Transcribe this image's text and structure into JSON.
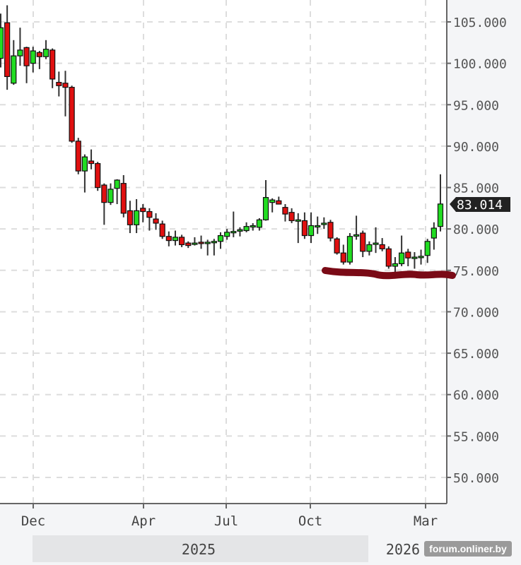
{
  "chart_data": {
    "type": "candlestick",
    "title": "",
    "xlabel": "",
    "ylabel": "",
    "ylim": [
      47,
      107
    ],
    "y_ticks": [
      "105.000",
      "100.000",
      "95.000",
      "90.000",
      "85.000",
      "80.000",
      "75.000",
      "70.000",
      "65.000",
      "60.000",
      "55.000",
      "50.000"
    ],
    "y_tick_values": [
      105,
      100,
      95,
      90,
      85,
      80,
      75,
      70,
      65,
      60,
      55,
      50
    ],
    "x_ticks": [
      "Dec",
      "Apr",
      "Jul",
      "Oct",
      "Mar"
    ],
    "years": [
      "2025",
      "2026"
    ],
    "grid": true,
    "axis_position": "right",
    "last_price_label": "83.014",
    "colors": {
      "up": "#22dd22",
      "down": "#e01010",
      "outline": "#111111",
      "annotation": "#7a0a16",
      "grid": "#dddddd"
    },
    "ohlc_columns": [
      "open",
      "high",
      "low",
      "close"
    ],
    "candles": [
      [
        100.6,
        106,
        99.5,
        104.3
      ],
      [
        104.9,
        107,
        96.8,
        98.4
      ],
      [
        97.6,
        102.8,
        97.4,
        100.9
      ],
      [
        100.9,
        104.3,
        99.7,
        101.6
      ],
      [
        101.9,
        102,
        97.6,
        99.7
      ],
      [
        100.0,
        102,
        98.9,
        101.5
      ],
      [
        101.3,
        101.5,
        99.3,
        100.8
      ],
      [
        100.8,
        102.8,
        100.5,
        101.7
      ],
      [
        101.6,
        101.8,
        97,
        98.1
      ],
      [
        97.7,
        99,
        96,
        97.3
      ],
      [
        97.6,
        99.1,
        93.6,
        97.1
      ],
      [
        97.1,
        97.3,
        90.4,
        90.6
      ],
      [
        90.6,
        91,
        86.6,
        87.0
      ],
      [
        87.0,
        89,
        84.4,
        88.7
      ],
      [
        88.2,
        89.6,
        87.2,
        87.9
      ],
      [
        87.9,
        88.1,
        84.6,
        85.0
      ],
      [
        85.3,
        85.5,
        80.5,
        83.2
      ],
      [
        83.2,
        85.5,
        82.9,
        84.8
      ],
      [
        84.9,
        86,
        83,
        85.9
      ],
      [
        85.5,
        86.5,
        81.4,
        81.9
      ],
      [
        82.2,
        83.4,
        79.5,
        80.5
      ],
      [
        80.5,
        83.6,
        79.5,
        82.2
      ],
      [
        82.5,
        83,
        80.8,
        82.1
      ],
      [
        82.1,
        82.5,
        79.8,
        81.4
      ],
      [
        81.2,
        81.9,
        79.9,
        80.7
      ],
      [
        80.6,
        81,
        78.8,
        79.1
      ],
      [
        79.1,
        79.7,
        77.9,
        78.6
      ],
      [
        78.6,
        79.8,
        78,
        79.0
      ],
      [
        79.0,
        79.3,
        77.8,
        78.1
      ],
      [
        78.3,
        78.5,
        77.7,
        78.0
      ],
      [
        78.2,
        79,
        78,
        78.3
      ],
      [
        78.4,
        79.2,
        77.6,
        78.3
      ],
      [
        78.3,
        78.7,
        76.8,
        78.4
      ],
      [
        78.4,
        78.8,
        76.8,
        78.5
      ],
      [
        78.5,
        79.6,
        77.6,
        79.2
      ],
      [
        79.1,
        80,
        78.7,
        79.6
      ],
      [
        79.6,
        82.1,
        79,
        79.7
      ],
      [
        79.8,
        80.2,
        79.1,
        79.9
      ],
      [
        79.8,
        80.8,
        79.6,
        80.3
      ],
      [
        80.3,
        80.7,
        79.8,
        80.4
      ],
      [
        80.2,
        81.3,
        79.8,
        81.1
      ],
      [
        81.1,
        85.9,
        81,
        83.8
      ],
      [
        83.2,
        83.7,
        82,
        83.5
      ],
      [
        83.4,
        83.9,
        83,
        83.0
      ],
      [
        82.6,
        83,
        80.9,
        81.8
      ],
      [
        82.0,
        82.5,
        80.7,
        81.0
      ],
      [
        81.0,
        81.9,
        78.3,
        81.1
      ],
      [
        81.0,
        82,
        78.8,
        79.2
      ],
      [
        79.2,
        82,
        78.3,
        80.4
      ],
      [
        80.4,
        81.5,
        79.4,
        80.4
      ],
      [
        80.6,
        81.4,
        80,
        80.7
      ],
      [
        80.8,
        81.1,
        78.5,
        78.9
      ],
      [
        78.8,
        79,
        76.9,
        77.1
      ],
      [
        77.1,
        78.1,
        75.7,
        76.0
      ],
      [
        76.0,
        79.5,
        75.7,
        79.1
      ],
      [
        79.2,
        81.6,
        78.7,
        79.3
      ],
      [
        79.5,
        79.8,
        76.6,
        77.3
      ],
      [
        77.3,
        78.5,
        76.8,
        78.1
      ],
      [
        78.2,
        80.2,
        77.1,
        78.3
      ],
      [
        78.1,
        78.9,
        77.3,
        77.6
      ],
      [
        77.6,
        77.9,
        75.2,
        75.5
      ],
      [
        75.5,
        76.6,
        74.8,
        75.8
      ],
      [
        75.8,
        79.2,
        75.5,
        77.1
      ],
      [
        77.2,
        77.6,
        75.5,
        76.5
      ],
      [
        76.6,
        77.2,
        75.2,
        76.6
      ],
      [
        76.6,
        77.5,
        75.7,
        76.7
      ],
      [
        76.8,
        78.8,
        75.9,
        78.5
      ],
      [
        78.9,
        80.8,
        77.5,
        80.1
      ],
      [
        80.3,
        86.6,
        79.7,
        83.014
      ]
    ]
  },
  "watermark": "forum.onliner.by"
}
